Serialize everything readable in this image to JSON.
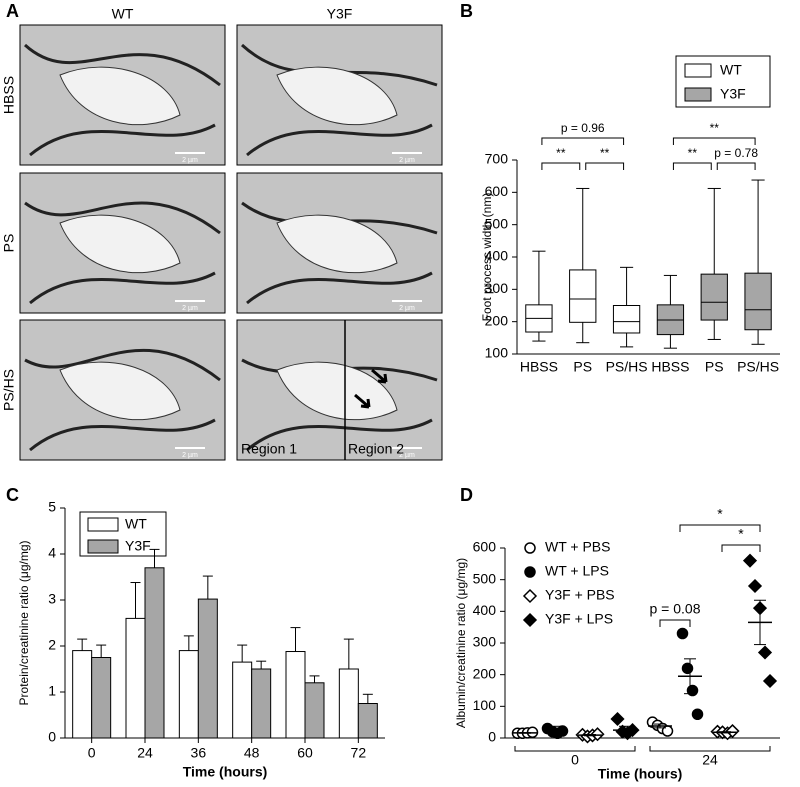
{
  "micrographs": {
    "label": "A",
    "columns": [
      "WT",
      "Y3F"
    ],
    "rows": [
      "HBSS",
      "PS",
      "PS/HS"
    ],
    "scale_bar": "2 µm",
    "regions": [
      "Region 1",
      "Region 2"
    ]
  },
  "chart_data": [
    {
      "type": "box",
      "label": "B",
      "y_label": "Foot process width (nm)",
      "categories": [
        "HBSS",
        "PS",
        "PS/HS",
        "HBSS",
        "PS",
        "PS/HS"
      ],
      "series": [
        {
          "name": "WT",
          "color": "#ffffff",
          "min": [
            140,
            135,
            122,
            null,
            null,
            null
          ],
          "q1": [
            168,
            198,
            165,
            null,
            null,
            null
          ],
          "median": [
            210,
            270,
            200,
            null,
            null,
            null
          ],
          "q3": [
            252,
            360,
            250,
            null,
            null,
            null
          ],
          "max": [
            418,
            612,
            368,
            null,
            null,
            null
          ]
        },
        {
          "name": "Y3F",
          "color": "#a6a6a6",
          "min": [
            null,
            null,
            null,
            118,
            145,
            130
          ],
          "q1": [
            null,
            null,
            null,
            160,
            205,
            175
          ],
          "median": [
            null,
            null,
            null,
            205,
            260,
            237
          ],
          "q3": [
            null,
            null,
            null,
            252,
            347,
            350
          ],
          "max": [
            null,
            null,
            null,
            343,
            612,
            638
          ]
        }
      ],
      "ylim": [
        100,
        700
      ],
      "yticks": [
        100,
        200,
        300,
        400,
        500,
        600,
        700
      ],
      "annotations": [
        "p = 0.96",
        "**",
        "**",
        "**",
        "**",
        "p = 0.78"
      ]
    },
    {
      "type": "bar",
      "label": "C",
      "x_label": "Time (hours)",
      "y_label": "Protein/creatinine ratio (μg/mg)",
      "categories": [
        "0",
        "24",
        "36",
        "48",
        "60",
        "72"
      ],
      "series": [
        {
          "name": "WT",
          "color": "#ffffff",
          "values": [
            1.9,
            2.6,
            1.9,
            1.65,
            1.88,
            1.5
          ],
          "errors": [
            0.25,
            0.78,
            0.32,
            0.37,
            0.52,
            0.65
          ]
        },
        {
          "name": "Y3F",
          "color": "#a6a6a6",
          "values": [
            1.75,
            3.7,
            3.02,
            1.5,
            1.2,
            0.75
          ],
          "errors": [
            0.27,
            0.4,
            0.5,
            0.17,
            0.15,
            0.2
          ]
        }
      ],
      "ylim": [
        0,
        5
      ],
      "yticks": [
        0,
        1,
        2,
        3,
        4,
        5
      ]
    },
    {
      "type": "dot",
      "label": "D",
      "x_label": "Time (hours)",
      "y_label": "Albumin/creatinine ratio (μg/mg)",
      "categories": [
        "0",
        "24"
      ],
      "series": [
        {
          "name": "WT + PBS",
          "marker": "circle",
          "filled": false,
          "values": [
            [
              15,
              15,
              16,
              18
            ],
            [
              50,
              40,
              30,
              22
            ]
          ],
          "mean": [
            16,
            38
          ],
          "sem": [
            1,
            6
          ]
        },
        {
          "name": "WT + LPS",
          "marker": "circle",
          "filled": true,
          "values": [
            [
              30,
              20,
              15,
              22
            ],
            [
              330,
              220,
              150,
              75
            ]
          ],
          "mean": [
            25,
            195
          ],
          "sem": [
            12,
            55
          ]
        },
        {
          "name": "Y3F + PBS",
          "marker": "diamond",
          "filled": false,
          "values": [
            [
              10,
              5,
              8,
              12
            ],
            [
              20,
              18,
              15,
              22
            ]
          ],
          "mean": [
            9,
            18
          ],
          "sem": [
            2,
            2
          ]
        },
        {
          "name": "Y3F + LPS",
          "marker": "diamond",
          "filled": true,
          "values": [
            [
              60,
              20,
              15,
              25
            ],
            [
              560,
              480,
              410,
              270,
              180
            ]
          ],
          "mean": [
            25,
            365
          ],
          "sem": [
            12,
            70
          ]
        }
      ],
      "ylim": [
        0,
        600
      ],
      "yticks": [
        0,
        100,
        200,
        300,
        400,
        500,
        600
      ],
      "annotations": [
        "p = 0.08",
        "*",
        "*"
      ]
    }
  ]
}
